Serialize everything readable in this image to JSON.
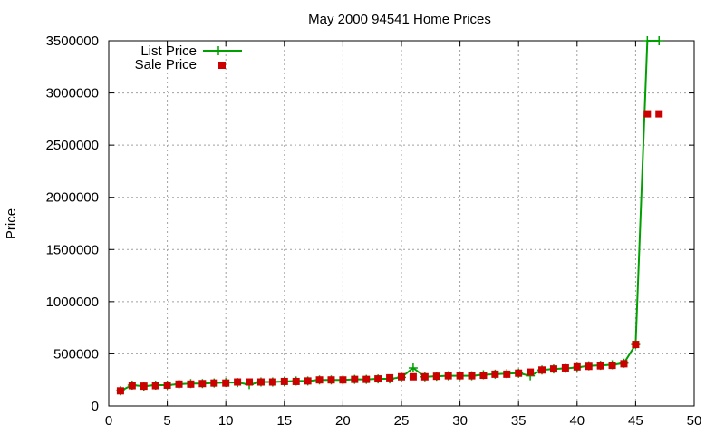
{
  "chart_data": {
    "type": "line",
    "title": "May 2000 94541 Home Prices",
    "xlabel": "",
    "ylabel": "Price",
    "xlim": [
      0,
      50
    ],
    "ylim": [
      0,
      3500000
    ],
    "x_ticks": [
      0,
      5,
      10,
      15,
      20,
      25,
      30,
      35,
      40,
      45,
      50
    ],
    "y_ticks": [
      0,
      500000,
      1000000,
      1500000,
      2000000,
      2500000,
      3000000,
      3500000
    ],
    "grid": true,
    "legend_position": "top-left",
    "x": [
      1,
      2,
      3,
      4,
      5,
      6,
      7,
      8,
      9,
      10,
      11,
      12,
      13,
      14,
      15,
      16,
      17,
      18,
      19,
      20,
      21,
      22,
      23,
      24,
      25,
      26,
      27,
      28,
      29,
      30,
      31,
      32,
      33,
      34,
      35,
      36,
      37,
      38,
      39,
      40,
      41,
      42,
      43,
      44,
      45,
      46,
      47
    ],
    "series": [
      {
        "name": "List Price",
        "style": "line+cross",
        "color": "#00a000",
        "values": [
          145000,
          200000,
          190000,
          200000,
          200000,
          210000,
          215000,
          215000,
          220000,
          225000,
          225000,
          205000,
          230000,
          230000,
          235000,
          240000,
          240000,
          250000,
          250000,
          250000,
          255000,
          255000,
          260000,
          260000,
          275000,
          365000,
          280000,
          285000,
          290000,
          290000,
          290000,
          300000,
          305000,
          310000,
          315000,
          290000,
          345000,
          355000,
          360000,
          370000,
          385000,
          390000,
          395000,
          410000,
          590000,
          3500000,
          3500000
        ]
      },
      {
        "name": "Sale Price",
        "style": "square",
        "color": "#cc0000",
        "values": [
          145000,
          195000,
          190000,
          195000,
          200000,
          210000,
          210000,
          215000,
          220000,
          220000,
          230000,
          230000,
          230000,
          230000,
          235000,
          235000,
          240000,
          250000,
          250000,
          250000,
          255000,
          255000,
          260000,
          270000,
          280000,
          280000,
          280000,
          285000,
          290000,
          290000,
          290000,
          295000,
          305000,
          305000,
          315000,
          325000,
          345000,
          355000,
          365000,
          375000,
          380000,
          385000,
          390000,
          405000,
          590000,
          2800000,
          2800000
        ]
      }
    ]
  }
}
